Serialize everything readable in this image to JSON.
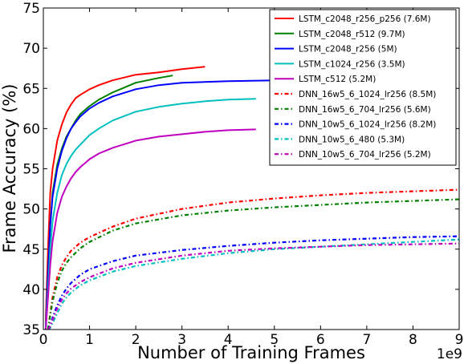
{
  "chart_data": {
    "type": "line",
    "xlabel": "Number of Training Frames",
    "ylabel": "Frame Accuracy (%)",
    "x_offset_label": "1e9",
    "xlim": [
      0,
      9
    ],
    "ylim": [
      35,
      75
    ],
    "xticks": [
      "0",
      "1",
      "2",
      "3",
      "4",
      "5",
      "6",
      "7",
      "8",
      "9"
    ],
    "yticks": [
      "35",
      "40",
      "45",
      "50",
      "55",
      "60",
      "65",
      "70",
      "75"
    ],
    "legend_position": "upper right",
    "series": [
      {
        "name": "LSTM_c2048_r256_p256 (7.6M)",
        "color": "#ff0000",
        "style": "solid",
        "x": [
          0.05,
          0.1,
          0.15,
          0.2,
          0.3,
          0.4,
          0.5,
          0.6,
          0.7,
          0.8,
          1.0,
          1.2,
          1.5,
          2.0,
          2.5,
          3.0,
          3.5
        ],
        "y": [
          36,
          45,
          52,
          55,
          58.5,
          60.5,
          62,
          63,
          63.8,
          64.2,
          64.9,
          65.4,
          66,
          66.7,
          67,
          67.4,
          67.7
        ]
      },
      {
        "name": "LSTM_c2048_r512 (9.7M)",
        "color": "#008000",
        "style": "solid",
        "x": [
          0.05,
          0.1,
          0.15,
          0.2,
          0.3,
          0.4,
          0.5,
          0.6,
          0.7,
          0.8,
          1.0,
          1.2,
          1.5,
          2.0,
          2.5,
          2.8
        ],
        "y": [
          35,
          42,
          48,
          52,
          55.5,
          57.5,
          59,
          60,
          61,
          61.8,
          62.8,
          63.6,
          64.5,
          65.7,
          66.3,
          66.6
        ]
      },
      {
        "name": "LSTM_c2048_r256 (5M)",
        "color": "#0000ff",
        "style": "solid",
        "x": [
          0.05,
          0.1,
          0.15,
          0.2,
          0.3,
          0.4,
          0.5,
          0.6,
          0.7,
          0.8,
          1.0,
          1.2,
          1.5,
          2.0,
          2.5,
          3.0,
          4.0,
          5.0
        ],
        "y": [
          35,
          42,
          48,
          51.5,
          55,
          57.2,
          58.8,
          60,
          60.8,
          61.5,
          62.5,
          63.2,
          64,
          64.9,
          65.4,
          65.7,
          65.9,
          66
        ]
      },
      {
        "name": "LSTM_c1024_r256 (3.5M)",
        "color": "#00bfbf",
        "style": "solid",
        "x": [
          0.05,
          0.1,
          0.15,
          0.2,
          0.3,
          0.4,
          0.5,
          0.6,
          0.7,
          0.8,
          1.0,
          1.2,
          1.5,
          2.0,
          2.5,
          3.0,
          3.5,
          4.0,
          4.6
        ],
        "y": [
          35,
          40,
          45,
          48.5,
          52,
          54.2,
          55.6,
          56.6,
          57.4,
          58,
          59.2,
          60,
          61,
          62.1,
          62.7,
          63.1,
          63.4,
          63.6,
          63.7
        ]
      },
      {
        "name": "LSTM_c512 (5.2M)",
        "color": "#bf00bf",
        "style": "solid",
        "x": [
          0.05,
          0.1,
          0.15,
          0.2,
          0.3,
          0.4,
          0.5,
          0.6,
          0.7,
          0.8,
          1.0,
          1.2,
          1.5,
          2.0,
          2.5,
          3.0,
          3.5,
          4.0,
          4.6
        ],
        "y": [
          35,
          39,
          43,
          46,
          49.5,
          51.5,
          52.8,
          53.8,
          54.6,
          55.2,
          56.2,
          56.9,
          57.6,
          58.5,
          59,
          59.3,
          59.6,
          59.8,
          59.9
        ]
      },
      {
        "name": "DNN_16w5_6_1024_lr256 (8.5M)",
        "color": "#ff0000",
        "style": "dashdot",
        "x": [
          0.1,
          0.15,
          0.2,
          0.3,
          0.4,
          0.5,
          0.6,
          0.8,
          1.0,
          1.5,
          2.0,
          3.0,
          4.0,
          5.0,
          6.0,
          7.0,
          8.0,
          9.0
        ],
        "y": [
          35,
          37,
          39,
          41.5,
          43,
          44,
          44.8,
          45.8,
          46.5,
          47.8,
          48.8,
          50,
          50.8,
          51.3,
          51.7,
          52,
          52.2,
          52.4
        ]
      },
      {
        "name": "DNN_16w5_6_704_lr256 (5.6M)",
        "color": "#008000",
        "style": "dashdot",
        "x": [
          0.1,
          0.15,
          0.2,
          0.3,
          0.4,
          0.5,
          0.6,
          0.8,
          1.0,
          1.5,
          2.0,
          3.0,
          4.0,
          5.0,
          6.0,
          7.0,
          8.0,
          9.0
        ],
        "y": [
          35,
          36.8,
          38.5,
          40.8,
          42.3,
          43.3,
          44,
          45.1,
          45.9,
          47.3,
          48.2,
          49.2,
          49.8,
          50.2,
          50.5,
          50.8,
          51,
          51.2
        ]
      },
      {
        "name": "DNN_10w5_6_1024_lr256 (8.2M)",
        "color": "#0000ff",
        "style": "dashdot",
        "x": [
          0.1,
          0.15,
          0.2,
          0.3,
          0.4,
          0.5,
          0.6,
          0.8,
          1.0,
          1.5,
          2.0,
          3.0,
          4.0,
          5.0,
          6.0,
          7.0,
          8.0,
          9.0
        ],
        "y": [
          35,
          35.5,
          36.5,
          38,
          39.2,
          40.1,
          40.8,
          41.8,
          42.5,
          43.5,
          44.2,
          44.9,
          45.4,
          45.8,
          46.1,
          46.3,
          46.5,
          46.6
        ]
      },
      {
        "name": "DNN_10w5_6_480 (5.3M)",
        "color": "#00bfbf",
        "style": "dashdot",
        "x": [
          0.1,
          0.15,
          0.2,
          0.3,
          0.4,
          0.5,
          0.6,
          0.8,
          1.0,
          1.5,
          2.0,
          3.0,
          4.0,
          5.0,
          6.0,
          7.0,
          8.0,
          9.0
        ],
        "y": [
          35,
          35.2,
          35.8,
          37,
          38.2,
          39,
          39.6,
          40.5,
          41.1,
          42.2,
          42.9,
          43.8,
          44.5,
          45,
          45.3,
          45.6,
          45.9,
          46.2
        ]
      },
      {
        "name": "DNN_10w5_6_704_lr256 (5.2M)",
        "color": "#bf00bf",
        "style": "dashdot",
        "x": [
          0.1,
          0.15,
          0.2,
          0.3,
          0.4,
          0.5,
          0.6,
          0.8,
          1.0,
          1.5,
          2.0,
          3.0,
          4.0,
          5.0,
          6.0,
          7.0,
          8.0,
          9.0
        ],
        "y": [
          35,
          35.4,
          36.2,
          37.6,
          38.7,
          39.5,
          40.1,
          40.9,
          41.5,
          42.6,
          43.3,
          44.2,
          44.8,
          45.1,
          45.3,
          45.5,
          45.6,
          45.7
        ]
      }
    ]
  }
}
